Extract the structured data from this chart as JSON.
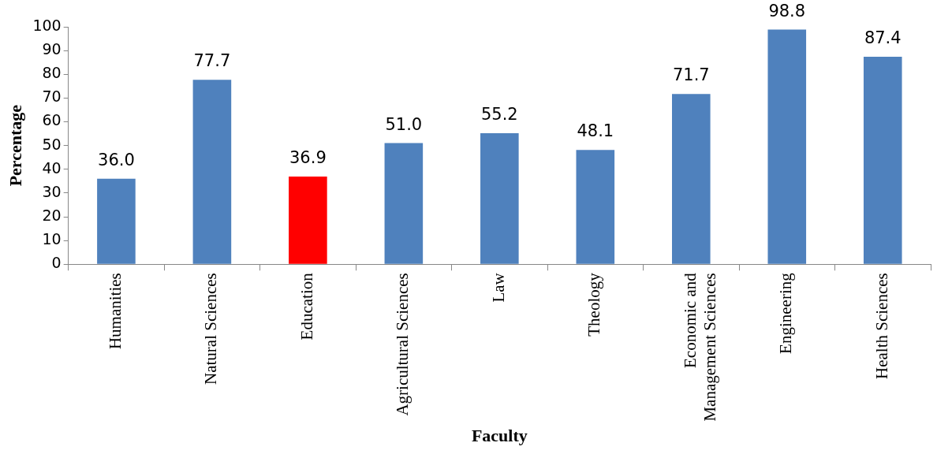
{
  "chart_data": {
    "type": "bar",
    "xlabel": "Faculty",
    "ylabel": "Percentage",
    "categories": [
      "Humanities",
      "Natural Sciences",
      "Education",
      "Agricultural Sciences",
      "Law",
      "Theology",
      "Economic and Management Sciences",
      "Engineering",
      "Health Sciences"
    ],
    "values": [
      36.0,
      77.7,
      36.9,
      51.0,
      55.2,
      48.1,
      71.7,
      98.8,
      87.4
    ],
    "colors": [
      "#4f81bd",
      "#4f81bd",
      "#ff0000",
      "#4f81bd",
      "#4f81bd",
      "#4f81bd",
      "#4f81bd",
      "#4f81bd",
      "#4f81bd"
    ],
    "value_labels": [
      "36.0",
      "77.7",
      "36.9",
      "51.0",
      "55.2",
      "48.1",
      "71.7",
      "98.8",
      "87.4"
    ],
    "ylim": [
      0,
      100
    ],
    "yticks": [
      0,
      10,
      20,
      30,
      40,
      50,
      60,
      70,
      80,
      90,
      100
    ],
    "grid": false,
    "legend": false
  }
}
